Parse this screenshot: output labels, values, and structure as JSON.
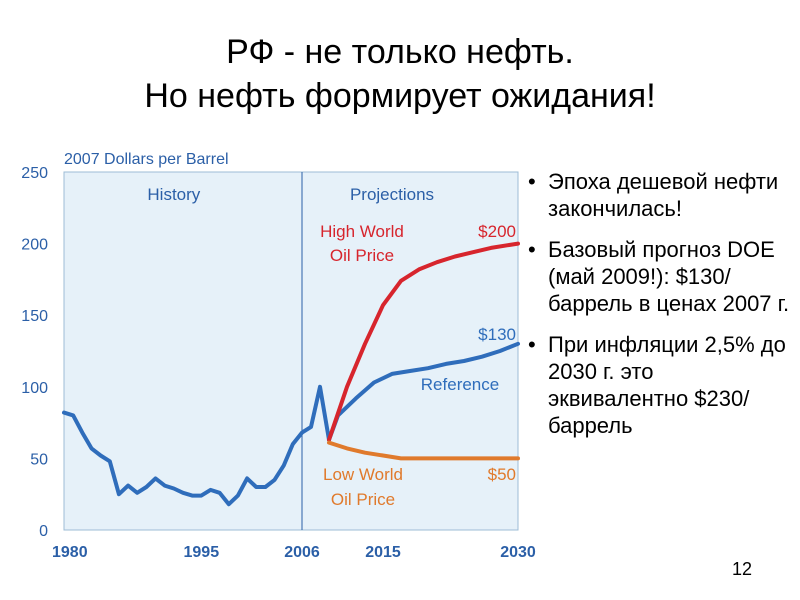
{
  "slide": {
    "title_line1": "РФ - не только нефть.",
    "title_line2": "Но нефть формирует ожидания!",
    "bullets": [
      "Эпоха дешевой нефти закончилась!",
      "Базовый прогноз DOE (май 2009!): $130/баррель в ценах 2007 г.",
      "При инфляции 2,5% до 2030 г. это эквивалентно $230/баррель"
    ],
    "page_number": "12"
  },
  "chart_data": {
    "type": "line",
    "ylabel": "2007 Dollars per Barrel",
    "ylim": [
      0,
      250
    ],
    "y_ticks": [
      "0",
      "50",
      "100",
      "150",
      "200",
      "250"
    ],
    "x_tick_labels": [
      "1980",
      "1995",
      "2006",
      "2015",
      "2030"
    ],
    "section_labels": {
      "history": "History",
      "projections": "Projections"
    },
    "colors": {
      "plot_bg": "#e6f1f9",
      "axis_text": "#2b5fa7",
      "history": "#2f6dbb",
      "reference": "#2f6dbb",
      "high": "#d7252d",
      "low": "#e07a2c"
    },
    "series": [
      {
        "name": "History",
        "points": [
          [
            1980,
            82
          ],
          [
            1981,
            80
          ],
          [
            1982,
            68
          ],
          [
            1983,
            57
          ],
          [
            1984,
            52
          ],
          [
            1985,
            48
          ],
          [
            1986,
            25
          ],
          [
            1987,
            31
          ],
          [
            1988,
            26
          ],
          [
            1989,
            30
          ],
          [
            1990,
            36
          ],
          [
            1991,
            31
          ],
          [
            1992,
            29
          ],
          [
            1993,
            26
          ],
          [
            1994,
            24
          ],
          [
            1995,
            24
          ],
          [
            1996,
            28
          ],
          [
            1997,
            26
          ],
          [
            1998,
            18
          ],
          [
            1999,
            24
          ],
          [
            2000,
            36
          ],
          [
            2001,
            30
          ],
          [
            2002,
            30
          ],
          [
            2003,
            35
          ],
          [
            2004,
            45
          ],
          [
            2005,
            60
          ],
          [
            2006,
            68
          ],
          [
            2007,
            72
          ],
          [
            2008,
            100
          ],
          [
            2009,
            63
          ]
        ]
      },
      {
        "name": "Reference",
        "label": "Reference",
        "end_label": "$130",
        "points": [
          [
            2009,
            63
          ],
          [
            2010,
            80
          ],
          [
            2012,
            92
          ],
          [
            2014,
            103
          ],
          [
            2016,
            109
          ],
          [
            2018,
            111
          ],
          [
            2020,
            113
          ],
          [
            2022,
            116
          ],
          [
            2024,
            118
          ],
          [
            2026,
            121
          ],
          [
            2028,
            125
          ],
          [
            2030,
            130
          ]
        ]
      },
      {
        "name": "High World Oil Price",
        "label": "High World Oil Price",
        "end_label": "$200",
        "points": [
          [
            2009,
            63
          ],
          [
            2011,
            100
          ],
          [
            2013,
            130
          ],
          [
            2015,
            157
          ],
          [
            2017,
            174
          ],
          [
            2019,
            182
          ],
          [
            2021,
            187
          ],
          [
            2023,
            191
          ],
          [
            2025,
            194
          ],
          [
            2027,
            197
          ],
          [
            2030,
            200
          ]
        ]
      },
      {
        "name": "Low World Oil Price",
        "label": "Low World Oil Price",
        "end_label": "$50",
        "points": [
          [
            2009,
            61
          ],
          [
            2011,
            57
          ],
          [
            2013,
            54
          ],
          [
            2015,
            52
          ],
          [
            2017,
            50
          ],
          [
            2019,
            50
          ],
          [
            2022,
            50
          ],
          [
            2026,
            50
          ],
          [
            2030,
            50
          ]
        ]
      }
    ]
  }
}
